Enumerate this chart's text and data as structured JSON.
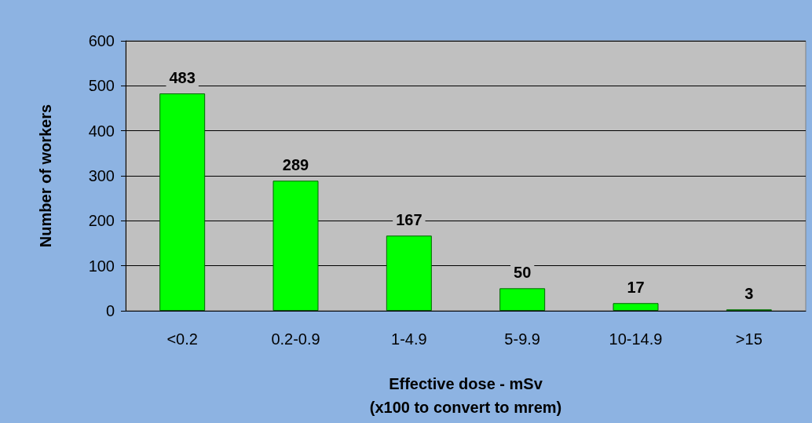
{
  "chart_data": {
    "type": "bar",
    "xlabel": "Effective dose - mSv\n(x100 to convert to mrem)",
    "ylabel": "Number of workers",
    "categories": [
      "<0.2",
      "0.2-0.9",
      "1-4.9",
      "5-9.9",
      "10-14.9",
      ">15"
    ],
    "values": [
      483,
      289,
      167,
      50,
      17,
      3
    ],
    "color": "#00ff00",
    "ylim": [
      0,
      600
    ],
    "yticks": [
      0,
      100,
      200,
      300,
      400,
      500,
      600
    ],
    "grid": "y",
    "data_labels": true
  }
}
